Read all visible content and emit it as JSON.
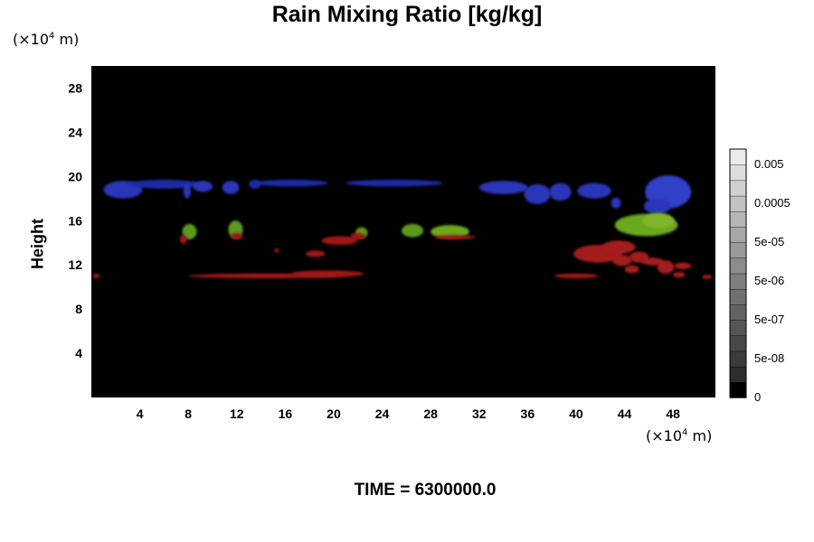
{
  "chart_data": {
    "type": "heatmap",
    "title": "Rain Mixing Ratio [kg/kg]",
    "ylabel": "Height",
    "xlabel": "",
    "x_unit_prefix": "(×10",
    "x_unit_exp": "4",
    "x_unit_suffix": " m)",
    "y_unit_prefix": "(×10",
    "y_unit_exp": "4",
    "y_unit_suffix": " m)",
    "xlim": [
      0,
      51.5
    ],
    "ylim": [
      0,
      30
    ],
    "x_ticks": [
      4,
      8,
      12,
      16,
      20,
      24,
      28,
      32,
      36,
      40,
      44,
      48
    ],
    "y_ticks": [
      4,
      8,
      12,
      16,
      20,
      24,
      28
    ],
    "background_color": "#000000",
    "colorbar": {
      "ticks": [
        "0",
        "5e-08",
        "5e-07",
        "5e-06",
        "5e-05",
        "0.0005",
        "0.005"
      ],
      "levels": 16
    },
    "features": [
      {
        "color": "#2a34b8",
        "cx": 2.6,
        "cy": 18.8,
        "rx": 1.6,
        "ry": 0.8
      },
      {
        "color": "#1e2aa6",
        "cx": 6.0,
        "cy": 19.3,
        "rx": 3.0,
        "ry": 0.4
      },
      {
        "color": "#2a34b8",
        "cx": 7.9,
        "cy": 18.7,
        "rx": 0.3,
        "ry": 0.7
      },
      {
        "color": "#2a34b8",
        "cx": 9.2,
        "cy": 19.1,
        "rx": 0.8,
        "ry": 0.5
      },
      {
        "color": "#2a34b8",
        "cx": 11.5,
        "cy": 19.0,
        "rx": 0.7,
        "ry": 0.6
      },
      {
        "color": "#1e2aa6",
        "cx": 13.5,
        "cy": 19.3,
        "rx": 0.5,
        "ry": 0.4
      },
      {
        "color": "#1e2aa6",
        "cx": 16.5,
        "cy": 19.4,
        "rx": 3.0,
        "ry": 0.3
      },
      {
        "color": "#1e2aa6",
        "cx": 25.0,
        "cy": 19.4,
        "rx": 4.0,
        "ry": 0.3
      },
      {
        "color": "#2a34b8",
        "cx": 34.0,
        "cy": 19.0,
        "rx": 2.0,
        "ry": 0.6
      },
      {
        "color": "#2a34b8",
        "cx": 36.8,
        "cy": 18.4,
        "rx": 1.1,
        "ry": 0.9
      },
      {
        "color": "#2a34b8",
        "cx": 38.7,
        "cy": 18.6,
        "rx": 0.9,
        "ry": 0.8
      },
      {
        "color": "#2a34b8",
        "cx": 41.5,
        "cy": 18.7,
        "rx": 1.4,
        "ry": 0.7
      },
      {
        "color": "#2a34b8",
        "cx": 43.3,
        "cy": 17.6,
        "rx": 0.4,
        "ry": 0.5
      },
      {
        "color": "#3340c8",
        "cx": 47.6,
        "cy": 18.6,
        "rx": 1.9,
        "ry": 1.5
      },
      {
        "color": "#2a34b8",
        "cx": 46.7,
        "cy": 17.3,
        "rx": 1.1,
        "ry": 0.7
      },
      {
        "color": "#5d9a1c",
        "cx": 8.1,
        "cy": 15.0,
        "rx": 0.6,
        "ry": 0.7
      },
      {
        "color": "#5d9a1c",
        "cx": 11.9,
        "cy": 15.2,
        "rx": 0.6,
        "ry": 0.8
      },
      {
        "color": "#5d9a1c",
        "cx": 22.3,
        "cy": 14.9,
        "rx": 0.5,
        "ry": 0.5
      },
      {
        "color": "#5d9a1c",
        "cx": 26.5,
        "cy": 15.1,
        "rx": 0.9,
        "ry": 0.6
      },
      {
        "color": "#6aa81e",
        "cx": 29.6,
        "cy": 15.0,
        "rx": 1.6,
        "ry": 0.6
      },
      {
        "color": "#6aa81e",
        "cx": 45.8,
        "cy": 15.6,
        "rx": 2.6,
        "ry": 1.0
      },
      {
        "color": "#7fb52a",
        "cx": 46.8,
        "cy": 16.0,
        "rx": 1.3,
        "ry": 0.7
      },
      {
        "color": "#a01818",
        "cx": 7.6,
        "cy": 14.3,
        "rx": 0.3,
        "ry": 0.4
      },
      {
        "color": "#a01818",
        "cx": 12.0,
        "cy": 14.6,
        "rx": 0.5,
        "ry": 0.3
      },
      {
        "color": "#a01818",
        "cx": 20.5,
        "cy": 14.2,
        "rx": 1.5,
        "ry": 0.4
      },
      {
        "color": "#a01818",
        "cx": 22.0,
        "cy": 14.6,
        "rx": 0.6,
        "ry": 0.3
      },
      {
        "color": "#a01818",
        "cx": 18.5,
        "cy": 13.0,
        "rx": 0.8,
        "ry": 0.3
      },
      {
        "color": "#a01818",
        "cx": 15.3,
        "cy": 13.3,
        "rx": 0.2,
        "ry": 0.2
      },
      {
        "color": "#a01818",
        "cx": 30.0,
        "cy": 14.5,
        "rx": 1.7,
        "ry": 0.2
      },
      {
        "color": "#a01818",
        "cx": 14.5,
        "cy": 11.0,
        "rx": 6.5,
        "ry": 0.22
      },
      {
        "color": "#a01818",
        "cx": 19.5,
        "cy": 11.2,
        "rx": 3.0,
        "ry": 0.3
      },
      {
        "color": "#a01818",
        "cx": 0.4,
        "cy": 11.0,
        "rx": 0.3,
        "ry": 0.2
      },
      {
        "color": "#a01818",
        "cx": 40.0,
        "cy": 11.0,
        "rx": 1.8,
        "ry": 0.22
      },
      {
        "color": "#a51a1a",
        "cx": 41.8,
        "cy": 13.0,
        "rx": 2.0,
        "ry": 0.8
      },
      {
        "color": "#a51a1a",
        "cx": 43.5,
        "cy": 13.6,
        "rx": 1.4,
        "ry": 0.6
      },
      {
        "color": "#a51a1a",
        "cx": 43.8,
        "cy": 12.4,
        "rx": 0.8,
        "ry": 0.5
      },
      {
        "color": "#a51a1a",
        "cx": 45.2,
        "cy": 12.7,
        "rx": 0.8,
        "ry": 0.5
      },
      {
        "color": "#a51a1a",
        "cx": 44.6,
        "cy": 11.6,
        "rx": 0.6,
        "ry": 0.35
      },
      {
        "color": "#a51a1a",
        "cx": 46.3,
        "cy": 12.3,
        "rx": 0.9,
        "ry": 0.35
      },
      {
        "color": "#a51a1a",
        "cx": 47.4,
        "cy": 11.8,
        "rx": 0.7,
        "ry": 0.6
      },
      {
        "color": "#a51a1a",
        "cx": 48.8,
        "cy": 11.9,
        "rx": 0.7,
        "ry": 0.3
      },
      {
        "color": "#a51a1a",
        "cx": 48.5,
        "cy": 11.1,
        "rx": 0.5,
        "ry": 0.25
      },
      {
        "color": "#a51a1a",
        "cx": 50.8,
        "cy": 10.9,
        "rx": 0.4,
        "ry": 0.2
      }
    ]
  },
  "time_label": "TIME = 6300000.0"
}
